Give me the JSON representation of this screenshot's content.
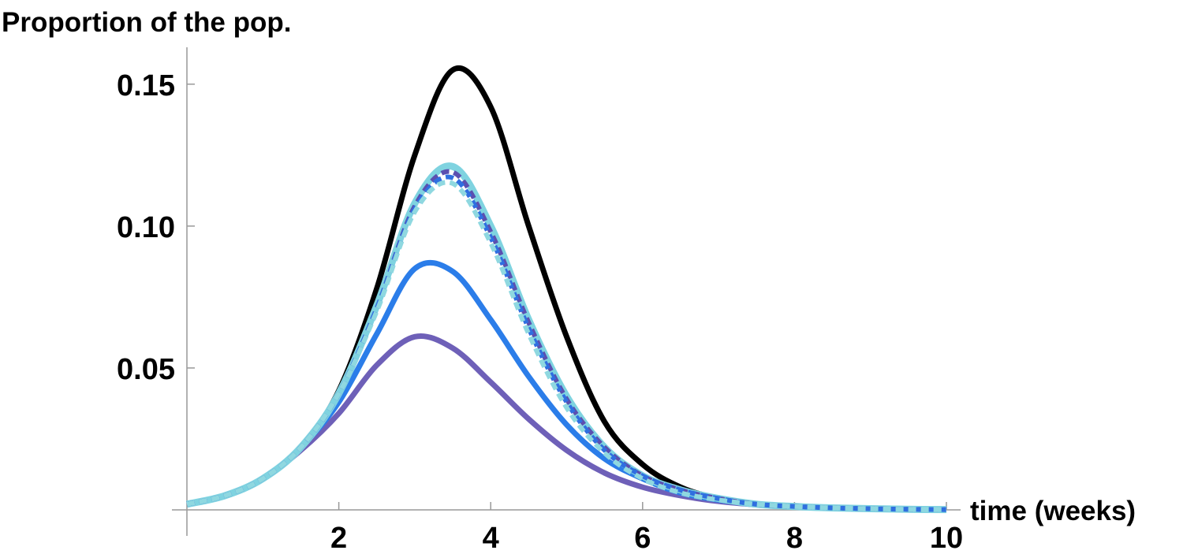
{
  "chart_data": {
    "type": "line",
    "y_label": "Proportion of the pop.",
    "x_label": "time (weeks)",
    "x": [
      0,
      0.5,
      1,
      1.5,
      2,
      2.5,
      3,
      3.5,
      4,
      4.5,
      5,
      5.5,
      6,
      6.5,
      7,
      7.5,
      8,
      8.5,
      9,
      9.5,
      10
    ],
    "xlim": [
      0,
      10
    ],
    "xticks": [
      2,
      4,
      6,
      8,
      10
    ],
    "ylim": [
      0,
      0.163
    ],
    "yticks": [
      0.05,
      {
        "value": 0.1,
        "label": "0.10"
      },
      0.15
    ],
    "series": [
      {
        "color": "#6e60b8",
        "dash": false,
        "values": [
          0.002,
          0.005,
          0.011,
          0.021,
          0.034,
          0.051,
          0.061,
          0.057,
          0.045,
          0.032,
          0.021,
          0.013,
          0.008,
          0.005,
          0.003,
          0.0018,
          0.001,
          0.0006,
          0.0004,
          0.0002,
          0.0001
        ]
      },
      {
        "color": "#2b7de9",
        "dash": false,
        "values": [
          0.002,
          0.005,
          0.011,
          0.022,
          0.038,
          0.062,
          0.085,
          0.084,
          0.067,
          0.047,
          0.03,
          0.018,
          0.011,
          0.006,
          0.0035,
          0.002,
          0.0012,
          0.0007,
          0.0004,
          0.0002,
          0.0001
        ]
      },
      {
        "color": "#000000",
        "dash": false,
        "values": [
          0.002,
          0.005,
          0.011,
          0.022,
          0.042,
          0.078,
          0.125,
          0.155,
          0.142,
          0.1,
          0.061,
          0.031,
          0.016,
          0.008,
          0.004,
          0.002,
          0.0012,
          0.0007,
          0.0004,
          0.0002,
          0.0001
        ]
      },
      {
        "color": "#7fd3e0",
        "dash": false,
        "values": [
          0.002,
          0.005,
          0.011,
          0.022,
          0.041,
          0.072,
          0.108,
          0.121,
          0.1,
          0.067,
          0.04,
          0.022,
          0.012,
          0.007,
          0.004,
          0.002,
          0.0012,
          0.0007,
          0.0004,
          0.0002,
          0.0001
        ]
      },
      {
        "color": "#5b4fb0",
        "dash": true,
        "values": [
          0.002,
          0.005,
          0.011,
          0.022,
          0.041,
          0.071,
          0.107,
          0.119,
          0.098,
          0.066,
          0.039,
          0.022,
          0.012,
          0.007,
          0.004,
          0.002,
          0.0012,
          0.0007,
          0.0004,
          0.0002,
          0.0001
        ]
      },
      {
        "color": "#2f6fe0",
        "dash": true,
        "values": [
          0.002,
          0.005,
          0.011,
          0.022,
          0.041,
          0.071,
          0.106,
          0.117,
          0.096,
          0.064,
          0.038,
          0.021,
          0.012,
          0.007,
          0.004,
          0.002,
          0.0012,
          0.0007,
          0.0004,
          0.0002,
          0.0001
        ]
      },
      {
        "color": "#8fd8e0",
        "dash": true,
        "values": [
          0.002,
          0.005,
          0.011,
          0.022,
          0.041,
          0.07,
          0.105,
          0.115,
          0.094,
          0.062,
          0.036,
          0.02,
          0.011,
          0.006,
          0.0035,
          0.002,
          0.0012,
          0.0007,
          0.0004,
          0.0002,
          0.0001
        ]
      }
    ]
  }
}
